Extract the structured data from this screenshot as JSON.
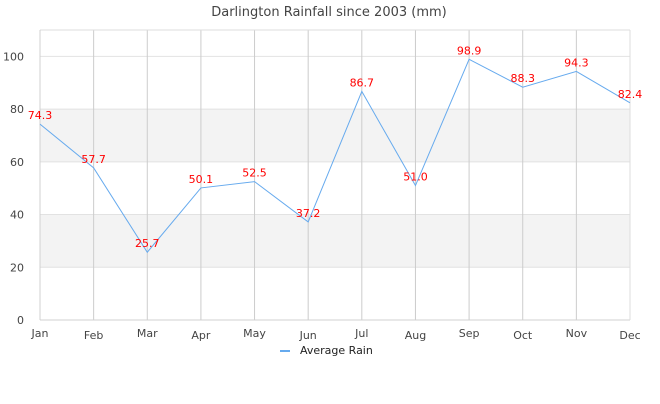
{
  "chart_data": {
    "type": "line",
    "title": "Darlington Rainfall since 2003 (mm)",
    "xlabel": "",
    "ylabel": "",
    "categories": [
      "Jan",
      "Feb",
      "Mar",
      "Apr",
      "May",
      "Jun",
      "Jul",
      "Aug",
      "Sep",
      "Oct",
      "Nov",
      "Dec"
    ],
    "series": [
      {
        "name": "Average Rain",
        "values": [
          74.3,
          57.7,
          25.7,
          50.1,
          52.5,
          37.2,
          86.7,
          51.0,
          98.9,
          88.3,
          94.3,
          82.4
        ],
        "color": "#66aaee"
      }
    ],
    "ylim": [
      0,
      110
    ],
    "yticks": [
      0,
      20,
      40,
      60,
      80,
      100
    ],
    "shaded_bands": [
      [
        20,
        40
      ],
      [
        60,
        80
      ]
    ],
    "band_color": "#f3f3f3",
    "data_label_color": "#ff0000",
    "grid": true,
    "legend_placement": "bottom"
  }
}
